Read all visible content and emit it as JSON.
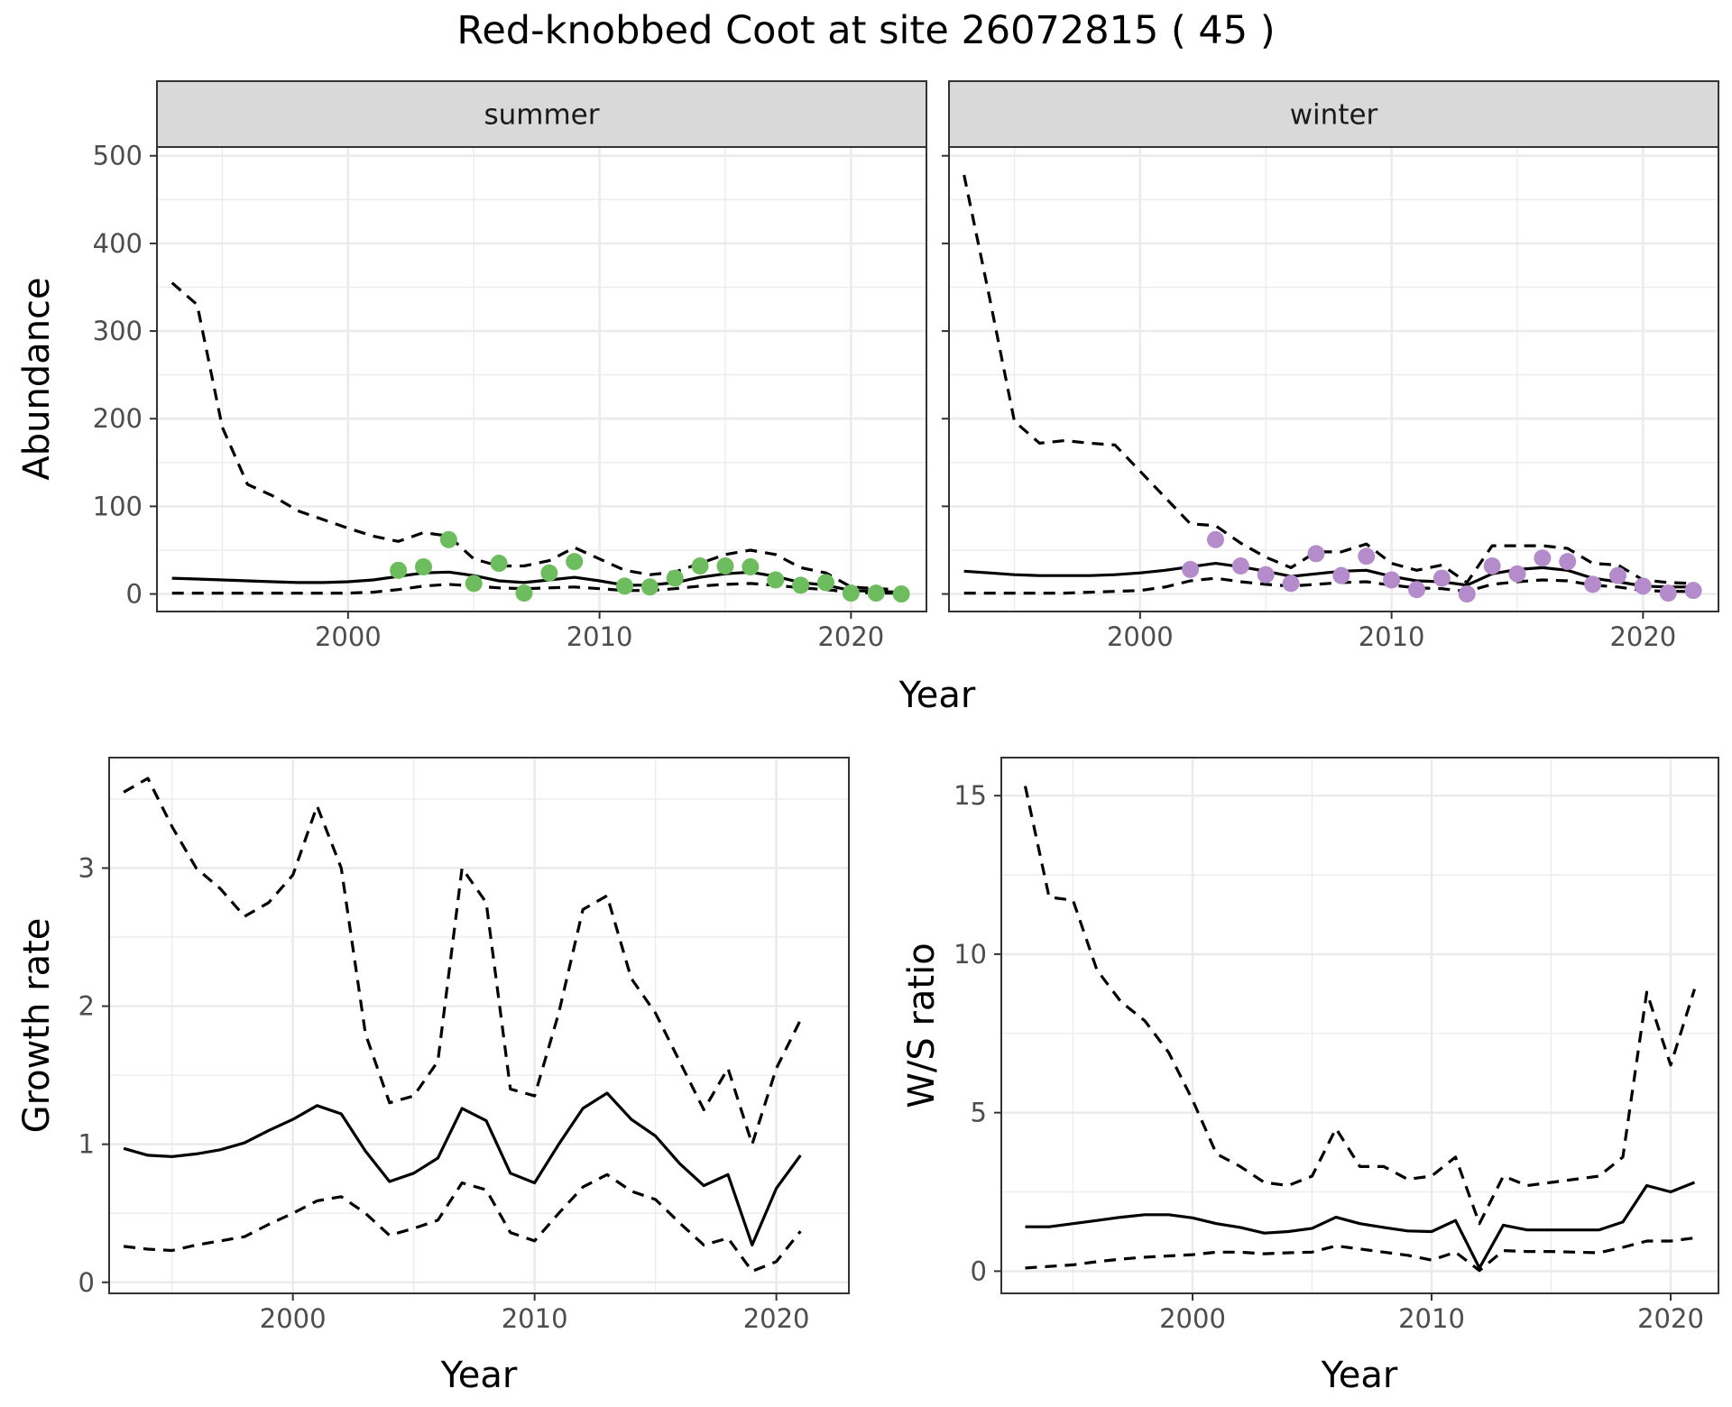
{
  "title": "Red-knobbed Coot at site 26072815 ( 45 )",
  "colors": {
    "summer_points": "#6dbd5e",
    "winter_points": "#b48ccb",
    "line": "#000000",
    "panel_border": "#333333",
    "grid": "#ebebeb",
    "strip_fill": "#d9d9d9"
  },
  "chart_data": [
    {
      "id": "abundance",
      "type": "line",
      "facets": [
        "summer",
        "winter"
      ],
      "xlabel": "Year",
      "ylabel": "Abundance",
      "xlim": [
        1992.4,
        2023.0
      ],
      "ylim": [
        -20,
        510
      ],
      "xticks": [
        2000,
        2010,
        2020
      ],
      "yticks": [
        0,
        100,
        200,
        300,
        400,
        500
      ],
      "grid": true,
      "panels": [
        {
          "facet": "summer",
          "point_color": "#6dbd5e",
          "fit": {
            "x": [
              1993,
              1994,
              1995,
              1996,
              1997,
              1998,
              1999,
              2000,
              2001,
              2002,
              2003,
              2004,
              2005,
              2006,
              2007,
              2008,
              2009,
              2010,
              2011,
              2012,
              2013,
              2014,
              2015,
              2016,
              2017,
              2018,
              2019,
              2020,
              2021,
              2022
            ],
            "y": [
              18,
              17,
              16,
              15,
              14,
              13,
              13,
              14,
              16,
              20,
              24,
              25,
              21,
              15,
              13,
              16,
              19,
              15,
              10,
              10,
              13,
              19,
              23,
              25,
              20,
              13,
              10,
              4,
              3,
              2
            ]
          },
          "upper": {
            "x": [
              1993,
              1994,
              1995,
              1996,
              1997,
              1998,
              1999,
              2000,
              2001,
              2002,
              2003,
              2004,
              2005,
              2006,
              2007,
              2008,
              2009,
              2010,
              2011,
              2012,
              2013,
              2014,
              2015,
              2016,
              2017,
              2018,
              2019,
              2020,
              2021,
              2022
            ],
            "y": [
              355,
              330,
              190,
              125,
              112,
              95,
              85,
              75,
              66,
              60,
              70,
              66,
              40,
              32,
              32,
              38,
              53,
              40,
              27,
              22,
              25,
              35,
              45,
              50,
              45,
              30,
              24,
              8,
              6,
              5
            ]
          },
          "lower": {
            "x": [
              1993,
              1994,
              1995,
              1996,
              1997,
              1998,
              1999,
              2000,
              2001,
              2002,
              2003,
              2004,
              2005,
              2006,
              2007,
              2008,
              2009,
              2010,
              2011,
              2012,
              2013,
              2014,
              2015,
              2016,
              2017,
              2018,
              2019,
              2020,
              2021,
              2022
            ],
            "y": [
              1,
              1,
              1,
              1,
              1,
              1,
              1,
              1,
              2,
              5,
              9,
              11,
              9,
              7,
              6,
              7,
              8,
              6,
              4,
              4,
              6,
              9,
              11,
              12,
              10,
              7,
              5,
              2,
              1,
              1
            ]
          },
          "points": {
            "x": [
              2002,
              2003,
              2004,
              2005,
              2006,
              2007,
              2008,
              2009,
              2011,
              2012,
              2013,
              2014,
              2015,
              2016,
              2017,
              2018,
              2019,
              2020,
              2021,
              2022
            ],
            "y": [
              27,
              31,
              62,
              12,
              35,
              1,
              24,
              37,
              9,
              8,
              18,
              32,
              32,
              31,
              16,
              10,
              13,
              1,
              1,
              0
            ]
          }
        },
        {
          "facet": "winter",
          "point_color": "#b48ccb",
          "fit": {
            "x": [
              1993,
              1994,
              1995,
              1996,
              1997,
              1998,
              1999,
              2000,
              2001,
              2002,
              2003,
              2004,
              2005,
              2006,
              2007,
              2008,
              2009,
              2010,
              2011,
              2012,
              2013,
              2014,
              2015,
              2016,
              2017,
              2018,
              2019,
              2020,
              2021,
              2022
            ],
            "y": [
              26,
              24,
              22,
              21,
              21,
              21,
              22,
              24,
              27,
              31,
              35,
              31,
              26,
              20,
              23,
              26,
              27,
              20,
              15,
              14,
              10,
              23,
              28,
              30,
              27,
              18,
              14,
              9,
              8,
              8
            ]
          },
          "upper": {
            "x": [
              1993,
              1994,
              1995,
              1996,
              1997,
              1998,
              1999,
              2000,
              2001,
              2002,
              2003,
              2004,
              2005,
              2006,
              2007,
              2008,
              2009,
              2010,
              2011,
              2012,
              2013,
              2014,
              2015,
              2016,
              2017,
              2018,
              2019,
              2020,
              2021,
              2022
            ],
            "y": [
              478,
              340,
              197,
              172,
              175,
              172,
              170,
              140,
              110,
              80,
              78,
              58,
              42,
              30,
              48,
              48,
              57,
              35,
              27,
              33,
              13,
              55,
              55,
              55,
              52,
              35,
              33,
              16,
              13,
              12
            ]
          },
          "lower": {
            "x": [
              1993,
              1994,
              1995,
              1996,
              1997,
              1998,
              1999,
              2000,
              2001,
              2002,
              2003,
              2004,
              2005,
              2006,
              2007,
              2008,
              2009,
              2010,
              2011,
              2012,
              2013,
              2014,
              2015,
              2016,
              2017,
              2018,
              2019,
              2020,
              2021,
              2022
            ],
            "y": [
              1,
              1,
              1,
              1,
              1,
              2,
              3,
              4,
              8,
              15,
              18,
              14,
              11,
              9,
              11,
              13,
              14,
              10,
              7,
              6,
              3,
              11,
              14,
              16,
              15,
              10,
              8,
              4,
              3,
              3
            ]
          },
          "points": {
            "x": [
              2002,
              2003,
              2004,
              2005,
              2006,
              2007,
              2008,
              2009,
              2010,
              2011,
              2012,
              2013,
              2014,
              2015,
              2016,
              2017,
              2018,
              2019,
              2020,
              2021,
              2022
            ],
            "y": [
              28,
              62,
              32,
              22,
              12,
              46,
              21,
              43,
              16,
              5,
              18,
              0,
              32,
              23,
              41,
              37,
              11,
              21,
              9,
              1,
              4
            ]
          }
        }
      ]
    },
    {
      "id": "growth",
      "type": "line",
      "xlabel": "Year",
      "ylabel": "Growth rate",
      "xlim": [
        1992.4,
        2023.0
      ],
      "ylim": [
        -0.08,
        3.8
      ],
      "xticks": [
        2000,
        2010,
        2020
      ],
      "yticks": [
        0,
        1,
        2,
        3
      ],
      "grid": true,
      "fit": {
        "x": [
          1993,
          1994,
          1995,
          1996,
          1997,
          1998,
          1999,
          2000,
          2001,
          2002,
          2003,
          2004,
          2005,
          2006,
          2007,
          2008,
          2009,
          2010,
          2011,
          2012,
          2013,
          2014,
          2015,
          2016,
          2017,
          2018,
          2019,
          2020,
          2021
        ],
        "y": [
          0.97,
          0.92,
          0.91,
          0.93,
          0.96,
          1.01,
          1.1,
          1.18,
          1.28,
          1.22,
          0.95,
          0.73,
          0.79,
          0.9,
          1.26,
          1.17,
          0.79,
          0.72,
          1.0,
          1.26,
          1.37,
          1.18,
          1.06,
          0.86,
          0.7,
          0.78,
          0.27,
          0.68,
          0.92
        ]
      },
      "upper": {
        "x": [
          1993,
          1994,
          1995,
          1996,
          1997,
          1998,
          1999,
          2000,
          2001,
          2002,
          2003,
          2004,
          2005,
          2006,
          2007,
          2008,
          2009,
          2010,
          2011,
          2012,
          2013,
          2014,
          2015,
          2016,
          2017,
          2018,
          2019,
          2020,
          2021
        ],
        "y": [
          3.55,
          3.65,
          3.3,
          3.0,
          2.85,
          2.65,
          2.75,
          2.95,
          3.45,
          3.0,
          1.8,
          1.3,
          1.35,
          1.6,
          3.0,
          2.75,
          1.4,
          1.35,
          1.95,
          2.7,
          2.8,
          2.2,
          1.95,
          1.6,
          1.25,
          1.55,
          1.0,
          1.55,
          1.9
        ]
      },
      "lower": {
        "x": [
          1993,
          1994,
          1995,
          1996,
          1997,
          1998,
          1999,
          2000,
          2001,
          2002,
          2003,
          2004,
          2005,
          2006,
          2007,
          2008,
          2009,
          2010,
          2011,
          2012,
          2013,
          2014,
          2015,
          2016,
          2017,
          2018,
          2019,
          2020,
          2021
        ],
        "y": [
          0.26,
          0.24,
          0.23,
          0.27,
          0.3,
          0.33,
          0.42,
          0.5,
          0.59,
          0.62,
          0.5,
          0.34,
          0.39,
          0.45,
          0.72,
          0.67,
          0.36,
          0.3,
          0.5,
          0.69,
          0.78,
          0.66,
          0.6,
          0.43,
          0.27,
          0.32,
          0.08,
          0.15,
          0.37
        ]
      }
    },
    {
      "id": "ws_ratio",
      "type": "line",
      "xlabel": "Year",
      "ylabel": "W/S ratio",
      "xlim": [
        1992.0,
        2022.0
      ],
      "ylim": [
        -0.7,
        16.2
      ],
      "xticks": [
        2000,
        2010,
        2020
      ],
      "yticks": [
        0,
        5,
        10,
        15
      ],
      "grid": true,
      "fit": {
        "x": [
          1993,
          1994,
          1995,
          1996,
          1997,
          1998,
          1999,
          2000,
          2001,
          2002,
          2003,
          2004,
          2005,
          2006,
          2007,
          2008,
          2009,
          2010,
          2011,
          2012,
          2013,
          2014,
          2015,
          2016,
          2017,
          2018,
          2019,
          2020,
          2021
        ],
        "y": [
          1.4,
          1.4,
          1.5,
          1.6,
          1.7,
          1.78,
          1.78,
          1.68,
          1.5,
          1.38,
          1.2,
          1.25,
          1.35,
          1.7,
          1.5,
          1.38,
          1.27,
          1.25,
          1.6,
          0.1,
          1.45,
          1.3,
          1.3,
          1.3,
          1.3,
          1.55,
          2.7,
          2.5,
          2.8
        ]
      },
      "upper": {
        "x": [
          1993,
          1994,
          1995,
          1996,
          1997,
          1998,
          1999,
          2000,
          2001,
          2002,
          2003,
          2004,
          2005,
          2006,
          2007,
          2008,
          2009,
          2010,
          2011,
          2012,
          2013,
          2014,
          2015,
          2016,
          2017,
          2018,
          2019,
          2020,
          2021
        ],
        "y": [
          15.3,
          11.8,
          11.7,
          9.5,
          8.5,
          7.9,
          6.9,
          5.4,
          3.7,
          3.3,
          2.8,
          2.7,
          3.0,
          4.5,
          3.3,
          3.3,
          2.9,
          3.0,
          3.6,
          1.5,
          3.0,
          2.7,
          2.8,
          2.9,
          3.0,
          3.6,
          8.8,
          6.5,
          8.9
        ]
      },
      "lower": {
        "x": [
          1993,
          1994,
          1995,
          1996,
          1997,
          1998,
          1999,
          2000,
          2001,
          2002,
          2003,
          2004,
          2005,
          2006,
          2007,
          2008,
          2009,
          2010,
          2011,
          2012,
          2013,
          2014,
          2015,
          2016,
          2017,
          2018,
          2019,
          2020,
          2021
        ],
        "y": [
          0.1,
          0.15,
          0.2,
          0.3,
          0.38,
          0.44,
          0.48,
          0.52,
          0.6,
          0.6,
          0.55,
          0.58,
          0.6,
          0.8,
          0.7,
          0.6,
          0.5,
          0.35,
          0.6,
          0.02,
          0.65,
          0.62,
          0.62,
          0.6,
          0.58,
          0.75,
          0.95,
          0.95,
          1.05
        ]
      }
    }
  ]
}
